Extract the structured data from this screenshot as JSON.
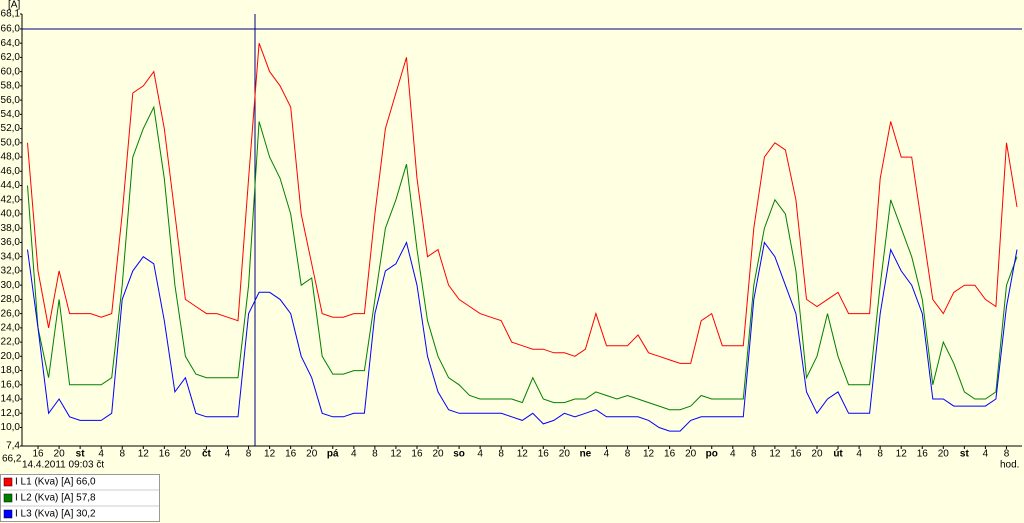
{
  "chart_data": {
    "type": "line",
    "y_unit": "[A]",
    "x_unit": "hod.",
    "cursor_time": "14.4.2011 09:03 čt",
    "cursor_value": "66,2",
    "hline": 66,
    "hline_color": "#000080",
    "ylim": [
      7.4,
      68.1
    ],
    "yticks": [
      {
        "value": 7.4,
        "label": "7,4"
      },
      {
        "value": 10,
        "label": "10,0"
      },
      {
        "value": 12,
        "label": "12,0"
      },
      {
        "value": 14,
        "label": "14,0"
      },
      {
        "value": 16,
        "label": "16,0"
      },
      {
        "value": 18,
        "label": "18,0"
      },
      {
        "value": 20,
        "label": "20,0"
      },
      {
        "value": 22,
        "label": "22,0"
      },
      {
        "value": 24,
        "label": "24,0"
      },
      {
        "value": 26,
        "label": "26,0"
      },
      {
        "value": 28,
        "label": "28,0"
      },
      {
        "value": 30,
        "label": "30,0"
      },
      {
        "value": 32,
        "label": "32,0"
      },
      {
        "value": 34,
        "label": "34,0"
      },
      {
        "value": 36,
        "label": "36,0"
      },
      {
        "value": 38,
        "label": "38,0"
      },
      {
        "value": 40,
        "label": "40,0"
      },
      {
        "value": 42,
        "label": "42,0"
      },
      {
        "value": 44,
        "label": "44,0"
      },
      {
        "value": 46,
        "label": "46,0"
      },
      {
        "value": 48,
        "label": "48,0"
      },
      {
        "value": 50,
        "label": "50,0"
      },
      {
        "value": 52,
        "label": "52,0"
      },
      {
        "value": 54,
        "label": "54,0"
      },
      {
        "value": 56,
        "label": "56,0"
      },
      {
        "value": 58,
        "label": "58,0"
      },
      {
        "value": 60,
        "label": "60,0"
      },
      {
        "value": 62,
        "label": "62,0"
      },
      {
        "value": 64,
        "label": "64,0"
      },
      {
        "value": 66,
        "label": "66,0"
      },
      {
        "value": 68.1,
        "label": "68,1"
      }
    ],
    "categories": [
      null,
      "16",
      null,
      "20",
      null,
      "st",
      null,
      "4",
      null,
      "8",
      null,
      "12",
      null,
      "16",
      null,
      "20",
      null,
      "čt",
      null,
      "4",
      null,
      "8",
      null,
      "12",
      null,
      "16",
      null,
      "20",
      null,
      "pá",
      null,
      "4",
      null,
      "8",
      null,
      "12",
      null,
      "16",
      null,
      "20",
      null,
      "so",
      null,
      "4",
      null,
      "8",
      null,
      "12",
      null,
      "16",
      null,
      "20",
      null,
      "ne",
      null,
      "4",
      null,
      "8",
      null,
      "12",
      null,
      "16",
      null,
      "20",
      null,
      "po",
      null,
      "4",
      null,
      "8",
      null,
      "12",
      null,
      "16",
      null,
      "20",
      null,
      "út",
      null,
      "4",
      null,
      "8",
      null,
      "12",
      null,
      "16",
      null,
      "20",
      null,
      "st",
      null,
      "4",
      null,
      "8",
      null
    ],
    "series": [
      {
        "name": "I L1  (Kva) [A] 66,0",
        "color": "#ff0000",
        "values": [
          50,
          32,
          24,
          32,
          26,
          26,
          26,
          25.5,
          26,
          40,
          57,
          58,
          60,
          52,
          40,
          28,
          27,
          26,
          26,
          25.5,
          25,
          45,
          64,
          60,
          58,
          55,
          40,
          33,
          26,
          25.5,
          25.5,
          26,
          26,
          40,
          52,
          57,
          62,
          45,
          34,
          35,
          30,
          28,
          27,
          26,
          25.5,
          25,
          22,
          21.5,
          21,
          21,
          20.5,
          20.5,
          20,
          21,
          26,
          21.5,
          21.5,
          21.5,
          23,
          20.5,
          20,
          19.5,
          19,
          19,
          25,
          26,
          21.5,
          21.5,
          21.5,
          38,
          48,
          50,
          49,
          42,
          28,
          27,
          28,
          29,
          26,
          26,
          26,
          45,
          53,
          48,
          48,
          38,
          28,
          26,
          29,
          30,
          30,
          28,
          27,
          50,
          41
        ]
      },
      {
        "name": "I L2  (Kva) [A] 57,8",
        "color": "#008000",
        "values": [
          44,
          24,
          17,
          28,
          16,
          16,
          16,
          16,
          17,
          30,
          48,
          52,
          55,
          45,
          30,
          20,
          17.5,
          17,
          17,
          17,
          17,
          30,
          53,
          48,
          45,
          40,
          30,
          31,
          20,
          17.5,
          17.5,
          18,
          18,
          28,
          38,
          42,
          47,
          35,
          25,
          20,
          17,
          16,
          14.5,
          14,
          14,
          14,
          14,
          13.5,
          17,
          14,
          13.5,
          13.5,
          14,
          14,
          15,
          14.5,
          14,
          14.5,
          14,
          13.5,
          13,
          12.5,
          12.5,
          13,
          14.5,
          14,
          14,
          14,
          14,
          30,
          38,
          42,
          40,
          32,
          17,
          20,
          26,
          20,
          16,
          16,
          16,
          30,
          42,
          38,
          34,
          28,
          16,
          22,
          19,
          15,
          14,
          14,
          15,
          30,
          34
        ]
      },
      {
        "name": "I L3  (Kva) [A] 30,2",
        "color": "#0000ff",
        "values": [
          35,
          24,
          12,
          14,
          11.5,
          11,
          11,
          11,
          12,
          28,
          32,
          34,
          33,
          25,
          15,
          17,
          12,
          11.5,
          11.5,
          11.5,
          11.5,
          26,
          29,
          29,
          28,
          26,
          20,
          17,
          12,
          11.5,
          11.5,
          12,
          12,
          26,
          32,
          33,
          36,
          30,
          20,
          15,
          12.5,
          12,
          12,
          12,
          12,
          12,
          11.5,
          11,
          12,
          10.5,
          11,
          12,
          11.5,
          12,
          12.5,
          11.5,
          11.5,
          11.5,
          11.5,
          11,
          10,
          9.5,
          9.5,
          11,
          11.5,
          11.5,
          11.5,
          11.5,
          11.5,
          28,
          36,
          34,
          30,
          26,
          15,
          12,
          14,
          15,
          12,
          12,
          12,
          26,
          35,
          32,
          30,
          26,
          14,
          14,
          13,
          13,
          13,
          13,
          14,
          27,
          35
        ]
      }
    ]
  }
}
